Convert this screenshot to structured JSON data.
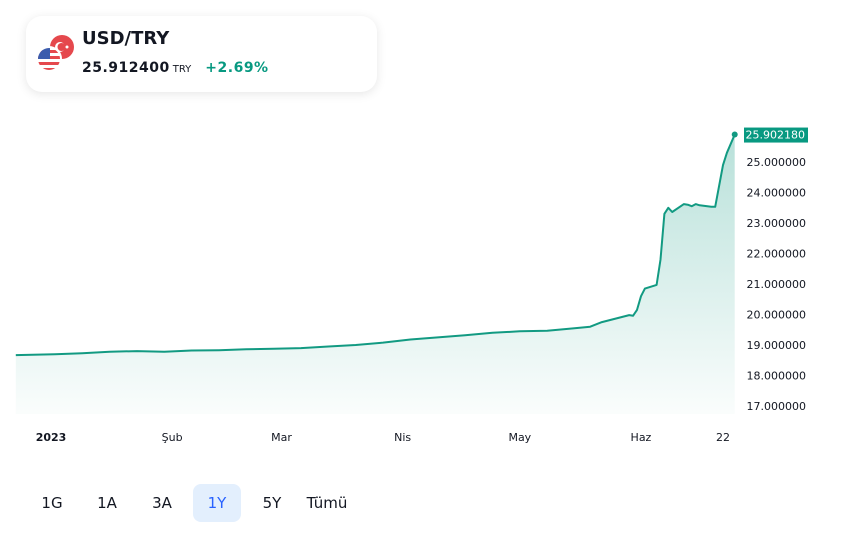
{
  "header": {
    "symbol": "USD/TRY",
    "price": "25.912400",
    "currency": "TRY",
    "change": "+2.69%",
    "icon": "usd-try-flags-icon"
  },
  "colors": {
    "line": "#129a82",
    "positive": "#089981",
    "active_range_bg": "#e3effd",
    "active_range_text": "#2962ff"
  },
  "ranges": [
    {
      "label": "1G"
    },
    {
      "label": "1A"
    },
    {
      "label": "3A"
    },
    {
      "label": "1Y",
      "active": true
    },
    {
      "label": "5Y"
    },
    {
      "label": "Tümü"
    }
  ],
  "chart_data": {
    "type": "area",
    "title": "",
    "xlabel": "",
    "ylabel": "",
    "ylim": [
      16.8,
      26.2
    ],
    "y_ticks": [
      "17.000000",
      "18.000000",
      "19.000000",
      "20.000000",
      "21.000000",
      "22.000000",
      "23.000000",
      "24.000000",
      "25.000000"
    ],
    "x_ticks": [
      {
        "date": "2023-01-01",
        "label": "2023"
      },
      {
        "date": "2023-02-01",
        "label": "Şub"
      },
      {
        "date": "2023-03-01",
        "label": "Mar"
      },
      {
        "date": "2023-04-01",
        "label": "Nis"
      },
      {
        "date": "2023-05-01",
        "label": "May"
      },
      {
        "date": "2023-06-01",
        "label": "Haz"
      },
      {
        "date": "2023-06-22",
        "label": "22"
      }
    ],
    "last_value_label": "25.902180",
    "grid": false,
    "series": [
      {
        "points": [
          [
            "2022-12-23",
            18.67
          ],
          [
            "2023-01-02",
            18.7
          ],
          [
            "2023-01-09",
            18.73
          ],
          [
            "2023-01-16",
            18.78
          ],
          [
            "2023-01-23",
            18.8
          ],
          [
            "2023-01-30",
            18.78
          ],
          [
            "2023-02-06",
            18.82
          ],
          [
            "2023-02-13",
            18.83
          ],
          [
            "2023-02-20",
            18.86
          ],
          [
            "2023-02-27",
            18.88
          ],
          [
            "2023-03-06",
            18.9
          ],
          [
            "2023-03-13",
            18.95
          ],
          [
            "2023-03-20",
            19.0
          ],
          [
            "2023-03-27",
            19.08
          ],
          [
            "2023-04-03",
            19.18
          ],
          [
            "2023-04-10",
            19.25
          ],
          [
            "2023-04-17",
            19.32
          ],
          [
            "2023-04-24",
            19.4
          ],
          [
            "2023-05-01",
            19.45
          ],
          [
            "2023-05-08",
            19.47
          ],
          [
            "2023-05-15",
            19.55
          ],
          [
            "2023-05-19",
            19.6
          ],
          [
            "2023-05-22",
            19.75
          ],
          [
            "2023-05-25",
            19.85
          ],
          [
            "2023-05-29",
            19.98
          ],
          [
            "2023-05-30",
            19.96
          ],
          [
            "2023-05-31",
            20.15
          ],
          [
            "2023-06-01",
            20.6
          ],
          [
            "2023-06-02",
            20.85
          ],
          [
            "2023-06-05",
            20.97
          ],
          [
            "2023-06-06",
            21.8
          ],
          [
            "2023-06-07",
            23.3
          ],
          [
            "2023-06-08",
            23.5
          ],
          [
            "2023-06-09",
            23.36
          ],
          [
            "2023-06-12",
            23.62
          ],
          [
            "2023-06-13",
            23.6
          ],
          [
            "2023-06-14",
            23.55
          ],
          [
            "2023-06-15",
            23.62
          ],
          [
            "2023-06-16",
            23.58
          ],
          [
            "2023-06-19",
            23.53
          ],
          [
            "2023-06-20",
            23.53
          ],
          [
            "2023-06-22",
            24.9
          ],
          [
            "2023-06-23",
            25.3
          ],
          [
            "2023-06-25",
            25.9
          ]
        ]
      }
    ]
  }
}
